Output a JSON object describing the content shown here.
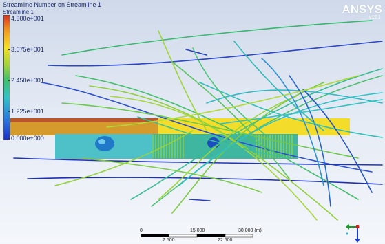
{
  "legend": {
    "title": "Streamline Number on Streamline 1",
    "subtitle": "Streamline 1",
    "ticks": [
      "4.900e+001",
      "3.675e+001",
      "2.450e+001",
      "1.225e+001",
      "0.000e+000"
    ]
  },
  "branding": {
    "logo_text": "ANSYS",
    "version_text": "v12.1"
  },
  "scale_bar": {
    "top_labels": [
      "0",
      "15.000",
      "30.000 (m)"
    ],
    "bottom_labels": [
      "7.500",
      "22.500"
    ]
  },
  "colors": {
    "background_top": "#cfd9ea",
    "background_bottom": "#f4f7fb",
    "colorbar_top": "#e3341b",
    "colorbar_bottom": "#1c2fc8",
    "text": "#1a2a6a"
  },
  "icons": {
    "axis_triad": "axis-triad-icon"
  }
}
